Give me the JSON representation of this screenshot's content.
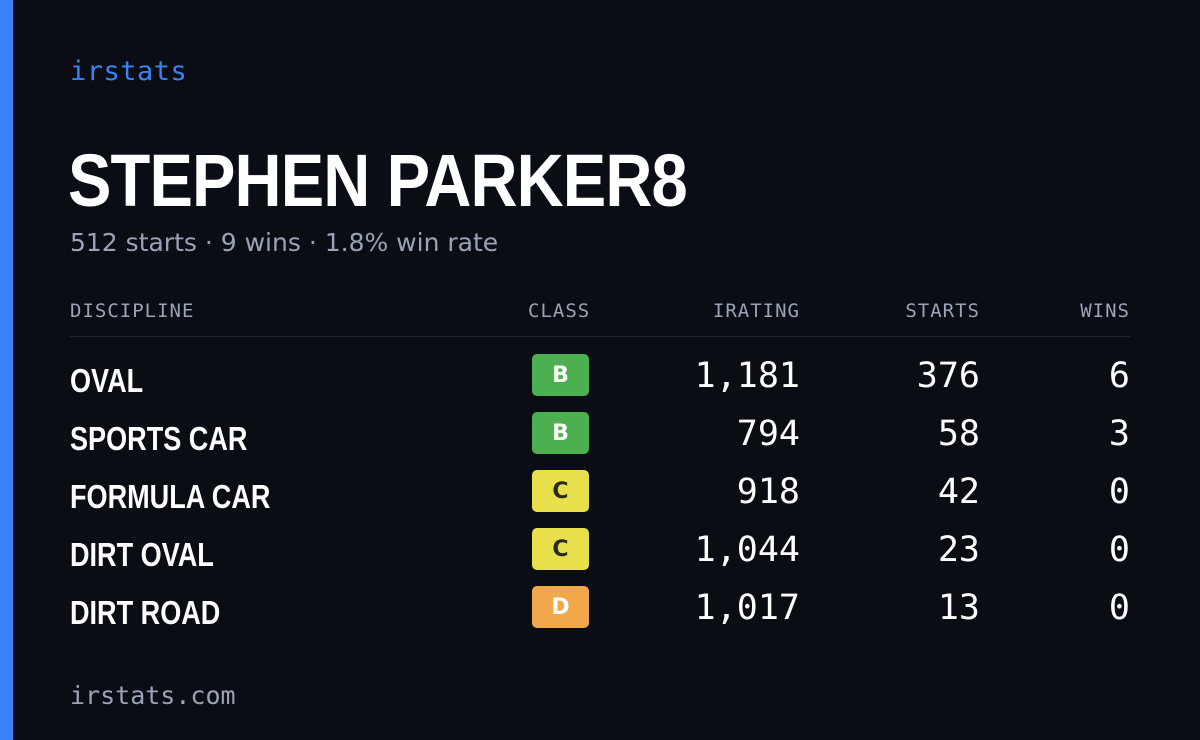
{
  "brand": "irstats",
  "driver_name": "STEPHEN PARKER8",
  "summary": "512 starts · 9 wins · 1.8% win rate",
  "columns": {
    "discipline": "DISCIPLINE",
    "class": "CLASS",
    "irating": "IRATING",
    "starts": "STARTS",
    "wins": "WINS"
  },
  "rows": [
    {
      "discipline": "OVAL",
      "class": "B",
      "class_bg": "#4cb050",
      "class_fg": "#ffffff",
      "irating": "1,181",
      "starts": "376",
      "wins": "6"
    },
    {
      "discipline": "SPORTS CAR",
      "class": "B",
      "class_bg": "#4cb050",
      "class_fg": "#ffffff",
      "irating": "794",
      "starts": "58",
      "wins": "3"
    },
    {
      "discipline": "FORMULA CAR",
      "class": "C",
      "class_bg": "#e8e04a",
      "class_fg": "#2a2a1a",
      "irating": "918",
      "starts": "42",
      "wins": "0"
    },
    {
      "discipline": "DIRT OVAL",
      "class": "C",
      "class_bg": "#e8e04a",
      "class_fg": "#2a2a1a",
      "irating": "1,044",
      "starts": "23",
      "wins": "0"
    },
    {
      "discipline": "DIRT ROAD",
      "class": "D",
      "class_bg": "#f0a84a",
      "class_fg": "#ffffff",
      "irating": "1,017",
      "starts": "13",
      "wins": "0"
    }
  ],
  "footer": "irstats.com",
  "colors": {
    "background": "#0a0d14",
    "accent": "#3b82f6",
    "muted_text": "#9aa4b6",
    "primary_text": "#ffffff",
    "divider": "#1f2533"
  }
}
